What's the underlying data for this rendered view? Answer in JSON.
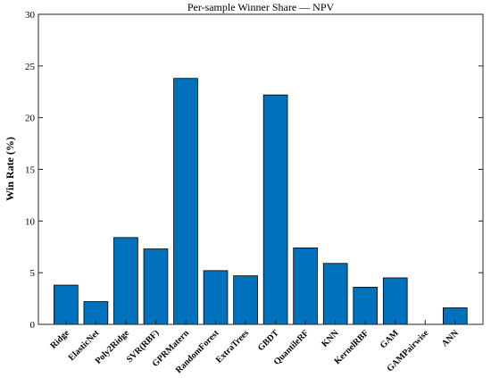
{
  "chart_data": {
    "type": "bar",
    "title": "Per-sample Winner Share — NPV",
    "xlabel": "",
    "ylabel": "Win Rate (%)",
    "ylim": [
      0,
      30
    ],
    "yticks": [
      0,
      5,
      10,
      15,
      20,
      25,
      30
    ],
    "grid": false,
    "bar_color": "#0072BD",
    "categories": [
      "Ridge",
      "ElasticNet",
      "Poly2Ridge",
      "SVR(RBF)",
      "GPRMatern",
      "RandomForest",
      "ExtraTrees",
      "GBDT",
      "QuantileRF",
      "KNN",
      "KernelRBF",
      "GAM",
      "GAMPairwise",
      "ANN"
    ],
    "values": [
      3.8,
      2.2,
      8.4,
      7.3,
      23.8,
      5.2,
      4.7,
      22.2,
      7.4,
      5.9,
      3.6,
      4.5,
      0.0,
      1.6
    ]
  }
}
